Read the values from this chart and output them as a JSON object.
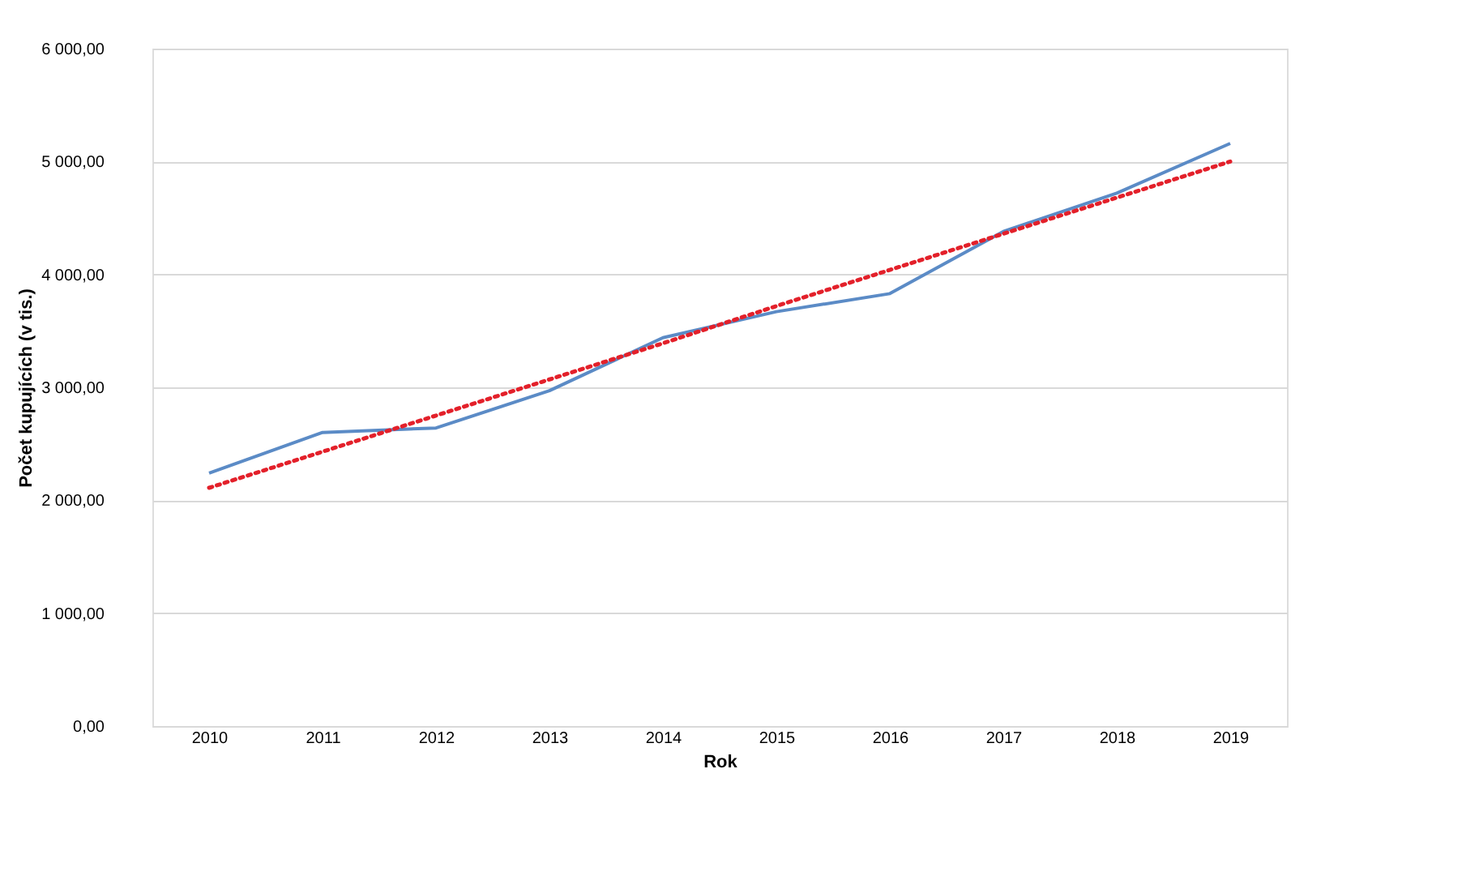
{
  "chart_data": {
    "type": "line",
    "xlabel": "Rok",
    "ylabel": "Počet kupujících (v tis.)",
    "categories": [
      "2010",
      "2011",
      "2012",
      "2013",
      "2014",
      "2015",
      "2016",
      "2017",
      "2018",
      "2019"
    ],
    "series": [
      {
        "color": "#5b8bc6",
        "values": [
          2240,
          2600,
          2640,
          2970,
          3440,
          3670,
          3830,
          4380,
          4720,
          5160
        ],
        "line_style": "solid"
      },
      {
        "type": "line",
        "color": "#e3202a",
        "values": [
          2110,
          2430,
          2750,
          3070,
          3390,
          3720,
          4040,
          4360,
          4680,
          5000
        ],
        "line_style": "dotted"
      }
    ],
    "ylim": [
      0,
      6000
    ],
    "yticks": [
      {
        "value": 0,
        "label": "0,00"
      },
      {
        "value": 1000,
        "label": "1 000,00"
      },
      {
        "value": 2000,
        "label": "2 000,00"
      },
      {
        "value": 3000,
        "label": "3 000,00"
      },
      {
        "value": 4000,
        "label": "4 000,00"
      },
      {
        "value": 5000,
        "label": "5 000,00"
      },
      {
        "value": 6000,
        "label": "6 000,00"
      }
    ],
    "grid": "y",
    "legend": false,
    "marker": "none"
  }
}
